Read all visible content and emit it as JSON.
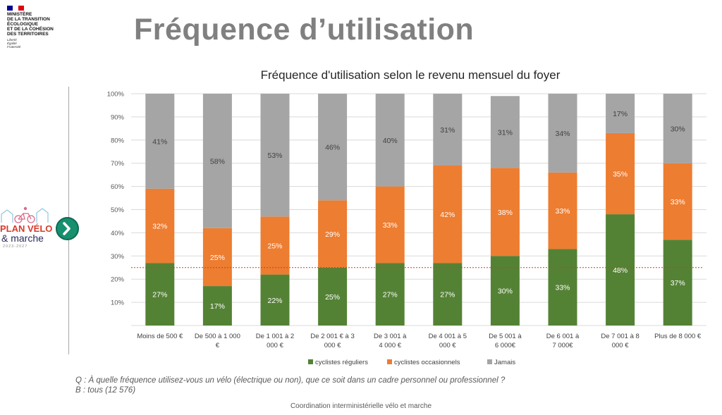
{
  "ministry": {
    "lines": [
      "MINISTÈRE",
      "DE LA TRANSITION",
      "ÉCOLOGIQUE",
      "ET DE LA COHÉSION",
      "DES TERRITOIRES"
    ],
    "motto": [
      "Liberté",
      "Égalité",
      "Fraternité"
    ],
    "flag_colors": [
      "#000091",
      "#ffffff",
      "#e1000f"
    ]
  },
  "page_title": "Fréquence d’utilisation",
  "plan_logo": {
    "line1": "PLAN VÉLO",
    "line2": "& marche",
    "years": "2023-2027",
    "icon": "chevron-right-icon"
  },
  "chart_data": {
    "type": "bar",
    "stacked": true,
    "title": "Fréquence d'utilisation selon le revenu mensuel du foyer",
    "categories": [
      [
        "Moins de 500 €"
      ],
      [
        "De 500 à 1 000",
        "€"
      ],
      [
        "De 1 001 à 2",
        "000 €"
      ],
      [
        "De 2 001 € à 3",
        "000 €"
      ],
      [
        "De 3 001 à",
        "4 000 €"
      ],
      [
        "De 4 001 à 5",
        "000 €"
      ],
      [
        "De 5 001 à",
        "6 000€"
      ],
      [
        "De 6 001 à",
        "7 000€"
      ],
      [
        "De 7 001 à 8",
        "000 €"
      ],
      [
        "Plus de 8 000 €"
      ]
    ],
    "series": [
      {
        "name": "cyclistes réguliers",
        "color": "#548235",
        "values": [
          27,
          17,
          22,
          25,
          27,
          27,
          30,
          33,
          48,
          37
        ]
      },
      {
        "name": "cyclistes occasionnels",
        "color": "#ed7d31",
        "values": [
          32,
          25,
          25,
          29,
          33,
          42,
          38,
          33,
          35,
          33
        ]
      },
      {
        "name": "Jamais",
        "color": "#a5a5a5",
        "values": [
          41,
          58,
          53,
          46,
          40,
          31,
          31,
          34,
          17,
          30
        ]
      }
    ],
    "yticks": [
      "100%",
      "90%",
      "80%",
      "70%",
      "60%",
      "50%",
      "40%",
      "30%",
      "20%",
      "10%"
    ],
    "ylim": [
      0,
      100
    ],
    "reference_line": {
      "value": 25,
      "color": "#e0312b",
      "style": "dotted"
    },
    "legend": "bottom"
  },
  "question": {
    "line1": "Q : À quelle fréquence utilisez-vous un vélo (électrique ou non), que ce soit dans un cadre personnel ou professionnel ?",
    "line2": "B : tous (12 576)"
  },
  "footer": "Coordination interministérielle vélo et marche"
}
